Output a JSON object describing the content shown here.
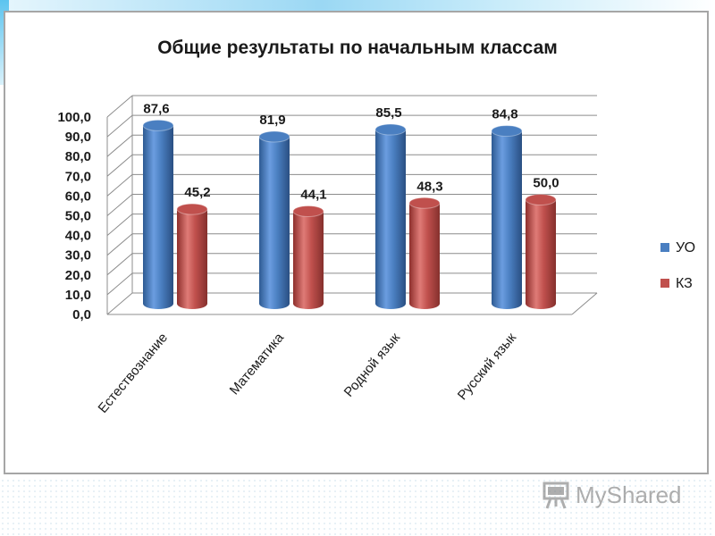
{
  "chart_data": {
    "type": "bar",
    "title": "Общие результаты по начальным классам",
    "categories": [
      "Естествознание",
      "Математика",
      "Родной язык",
      "Русский язык"
    ],
    "series": [
      {
        "name": "УО",
        "values": [
          87.6,
          81.9,
          85.5,
          84.8
        ],
        "labels": [
          "87,6",
          "81,9",
          "85,5",
          "84,8"
        ],
        "color": "#4a7fc1"
      },
      {
        "name": "КЗ",
        "values": [
          45.2,
          44.1,
          48.3,
          50.0
        ],
        "labels": [
          "45,2",
          "44,1",
          "48,3",
          "50,0"
        ],
        "color": "#c0504d"
      }
    ],
    "yticks": [
      "0,0",
      "10,0",
      "20,0",
      "30,0",
      "40,0",
      "50,0",
      "60,0",
      "70,0",
      "80,0",
      "90,0",
      "100,0"
    ],
    "ylim": [
      0,
      100
    ],
    "grid": true,
    "legend_position": "right",
    "style": "3d-cylinder"
  },
  "watermark": {
    "text": "MyShared"
  }
}
